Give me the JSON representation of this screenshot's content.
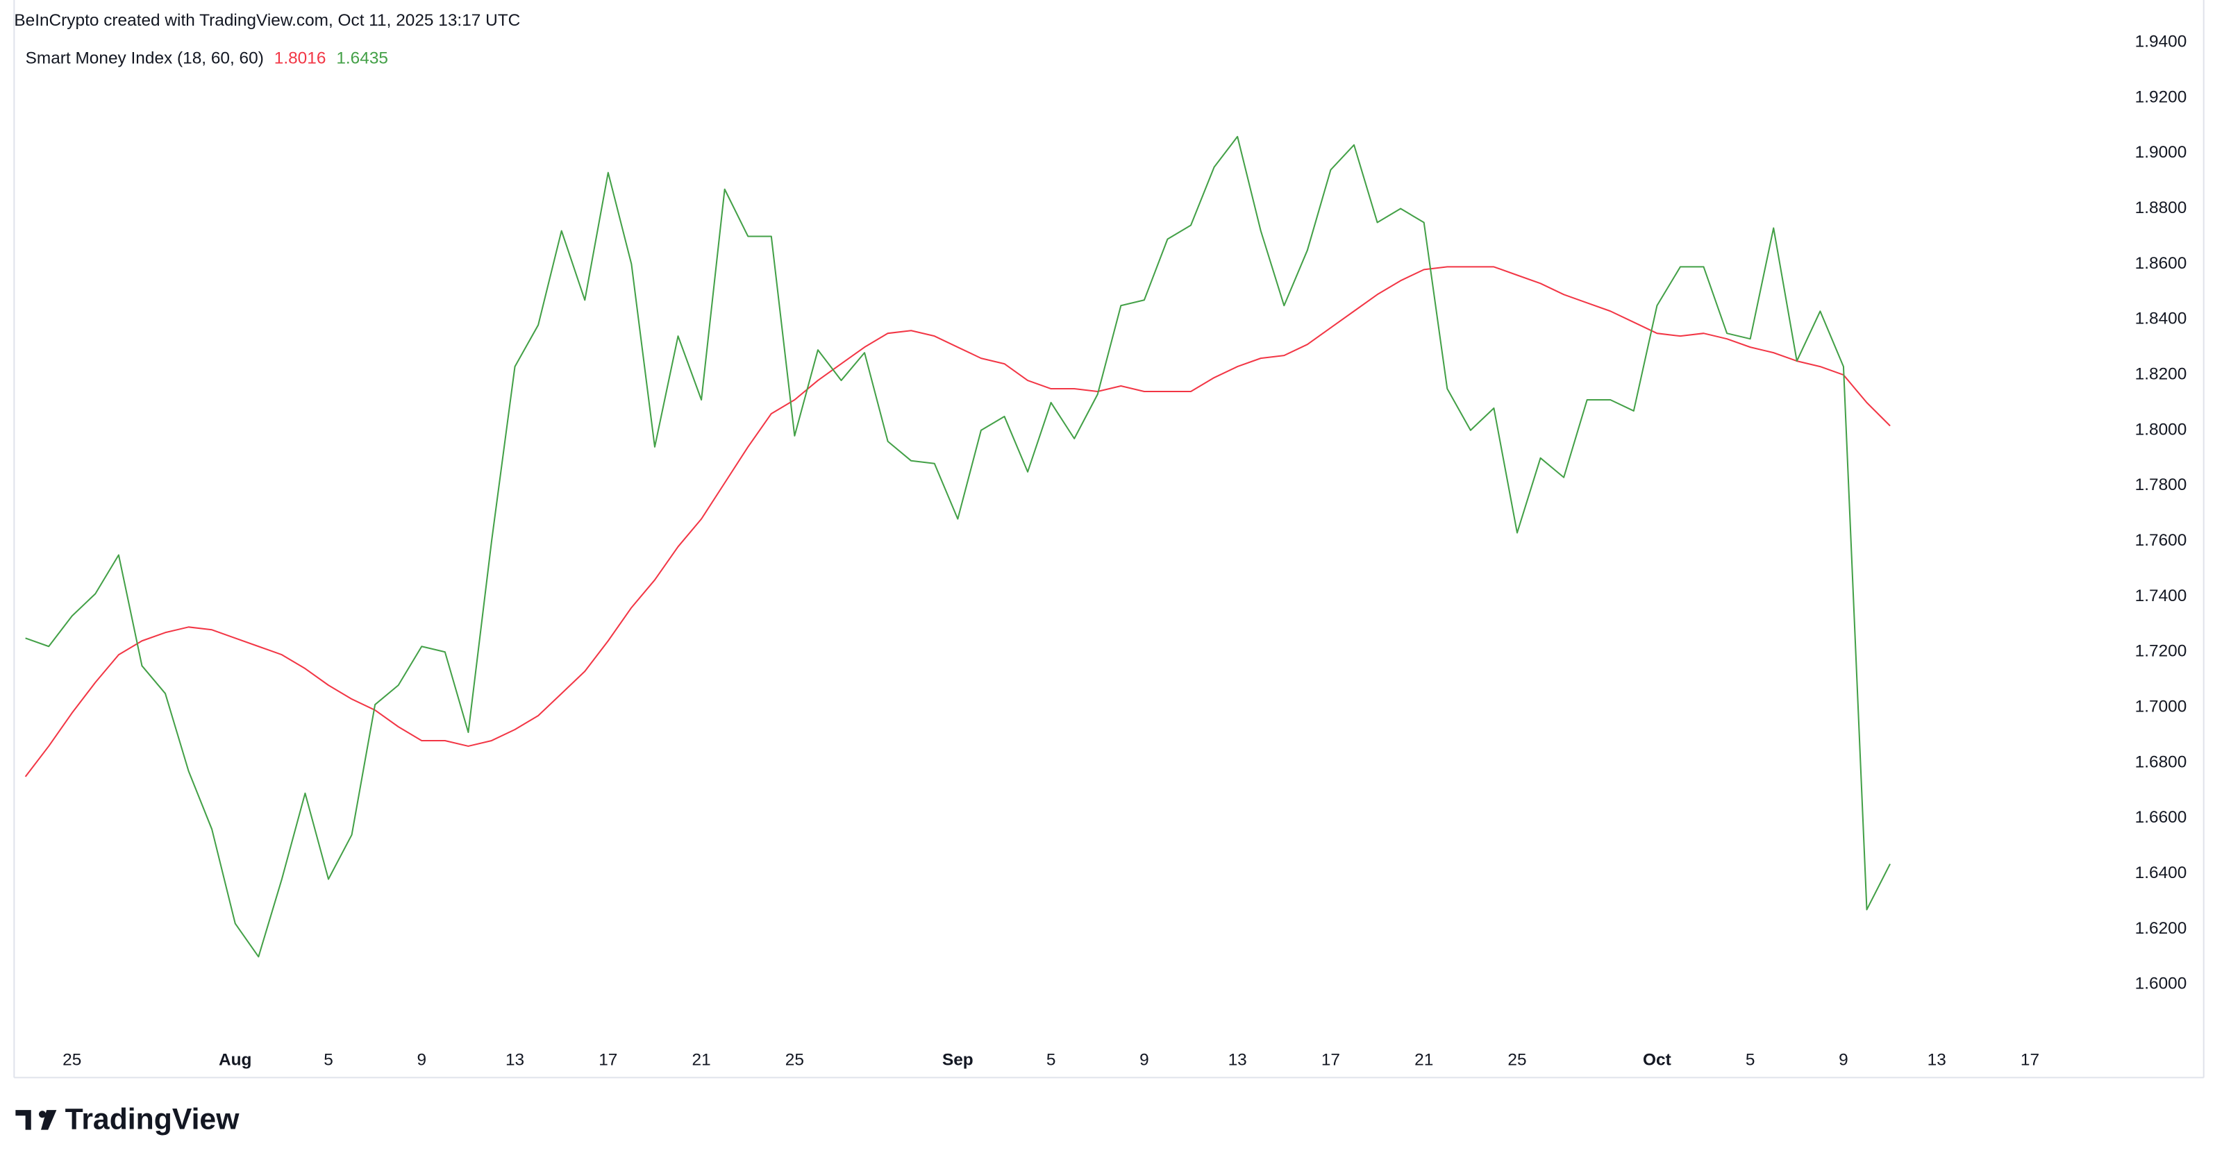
{
  "chart_data": {
    "type": "line",
    "title": "BeInCrypto created with TradingView.com, Oct 11, 2025 13:17 UTC",
    "indicator": "Smart Money Index (18, 60, 60)",
    "brand": "TradingView",
    "categories": [
      null,
      null,
      "25",
      null,
      null,
      null,
      null,
      null,
      null,
      "Aug",
      null,
      null,
      null,
      "5",
      null,
      null,
      null,
      "9",
      null,
      null,
      null,
      "13",
      null,
      null,
      null,
      "17",
      null,
      null,
      null,
      "21",
      null,
      null,
      null,
      "25",
      null,
      null,
      null,
      null,
      null,
      null,
      "Sep",
      null,
      null,
      null,
      "5",
      null,
      null,
      null,
      "9",
      null,
      null,
      null,
      "13",
      null,
      null,
      null,
      "17",
      null,
      null,
      null,
      "21",
      null,
      null,
      null,
      "25",
      null,
      null,
      null,
      null,
      null,
      "Oct",
      null,
      null,
      null,
      "5",
      null,
      null,
      null,
      "9",
      null,
      null,
      null,
      "13",
      null,
      null,
      null,
      "17"
    ],
    "series": [
      {
        "color": "#f23645",
        "values": [
          1.675,
          1.686,
          1.698,
          1.709,
          1.719,
          1.724,
          1.727,
          1.729,
          1.728,
          1.725,
          1.722,
          1.719,
          1.714,
          1.708,
          1.703,
          1.699,
          1.693,
          1.688,
          1.688,
          1.686,
          1.688,
          1.692,
          1.697,
          1.705,
          1.713,
          1.724,
          1.736,
          1.746,
          1.758,
          1.768,
          1.781,
          1.794,
          1.806,
          1.811,
          1.818,
          1.824,
          1.83,
          1.835,
          1.836,
          1.834,
          1.83,
          1.826,
          1.824,
          1.818,
          1.815,
          1.815,
          1.814,
          1.816,
          1.814,
          1.814,
          1.814,
          1.819,
          1.823,
          1.826,
          1.827,
          1.831,
          1.837,
          1.843,
          1.849,
          1.854,
          1.858,
          1.859,
          1.859,
          1.859,
          1.856,
          1.853,
          1.849,
          1.846,
          1.843,
          1.839,
          1.835,
          1.834,
          1.835,
          1.833,
          1.83,
          1.828,
          1.825,
          1.823,
          1.82,
          1.81,
          1.8016,
          null,
          null,
          null,
          null,
          null,
          null
        ]
      },
      {
        "color": "#43a047",
        "values": [
          1.725,
          1.722,
          1.733,
          1.741,
          1.755,
          1.715,
          1.705,
          1.677,
          1.656,
          1.622,
          1.61,
          1.638,
          1.669,
          1.638,
          1.654,
          1.701,
          1.708,
          1.722,
          1.72,
          1.691,
          1.76,
          1.823,
          1.838,
          1.872,
          1.847,
          1.893,
          1.86,
          1.794,
          1.834,
          1.811,
          1.887,
          1.87,
          1.87,
          1.798,
          1.829,
          1.818,
          1.828,
          1.796,
          1.789,
          1.788,
          1.768,
          1.8,
          1.805,
          1.785,
          1.81,
          1.797,
          1.813,
          1.845,
          1.847,
          1.869,
          1.874,
          1.895,
          1.906,
          1.872,
          1.845,
          1.865,
          1.894,
          1.903,
          1.875,
          1.88,
          1.875,
          1.815,
          1.8,
          1.808,
          1.763,
          1.79,
          1.783,
          1.811,
          1.811,
          1.807,
          1.845,
          1.859,
          1.859,
          1.835,
          1.833,
          1.873,
          1.825,
          1.843,
          1.823,
          1.627,
          1.6435,
          null,
          null,
          null,
          null,
          null,
          null
        ]
      }
    ],
    "ylim": [
      1.5664,
      1.9553
    ],
    "yticks": [
      {
        "value": 1.94,
        "label": "1.9400"
      },
      {
        "value": 1.92,
        "label": "1.9200"
      },
      {
        "value": 1.9,
        "label": "1.9000"
      },
      {
        "value": 1.88,
        "label": "1.8800"
      },
      {
        "value": 1.86,
        "label": "1.8600"
      },
      {
        "value": 1.84,
        "label": "1.8400"
      },
      {
        "value": 1.82,
        "label": "1.8200"
      },
      {
        "value": 1.8,
        "label": "1.8000"
      },
      {
        "value": 1.78,
        "label": "1.7800"
      },
      {
        "value": 1.76,
        "label": "1.7600"
      },
      {
        "value": 1.74,
        "label": "1.7400"
      },
      {
        "value": 1.72,
        "label": "1.7200"
      },
      {
        "value": 1.7,
        "label": "1.7000"
      },
      {
        "value": 1.68,
        "label": "1.6800"
      },
      {
        "value": 1.66,
        "label": "1.6600"
      },
      {
        "value": 1.64,
        "label": "1.6400"
      },
      {
        "value": 1.62,
        "label": "1.6200"
      },
      {
        "value": 1.6,
        "label": "1.6000"
      }
    ],
    "grid": false
  }
}
